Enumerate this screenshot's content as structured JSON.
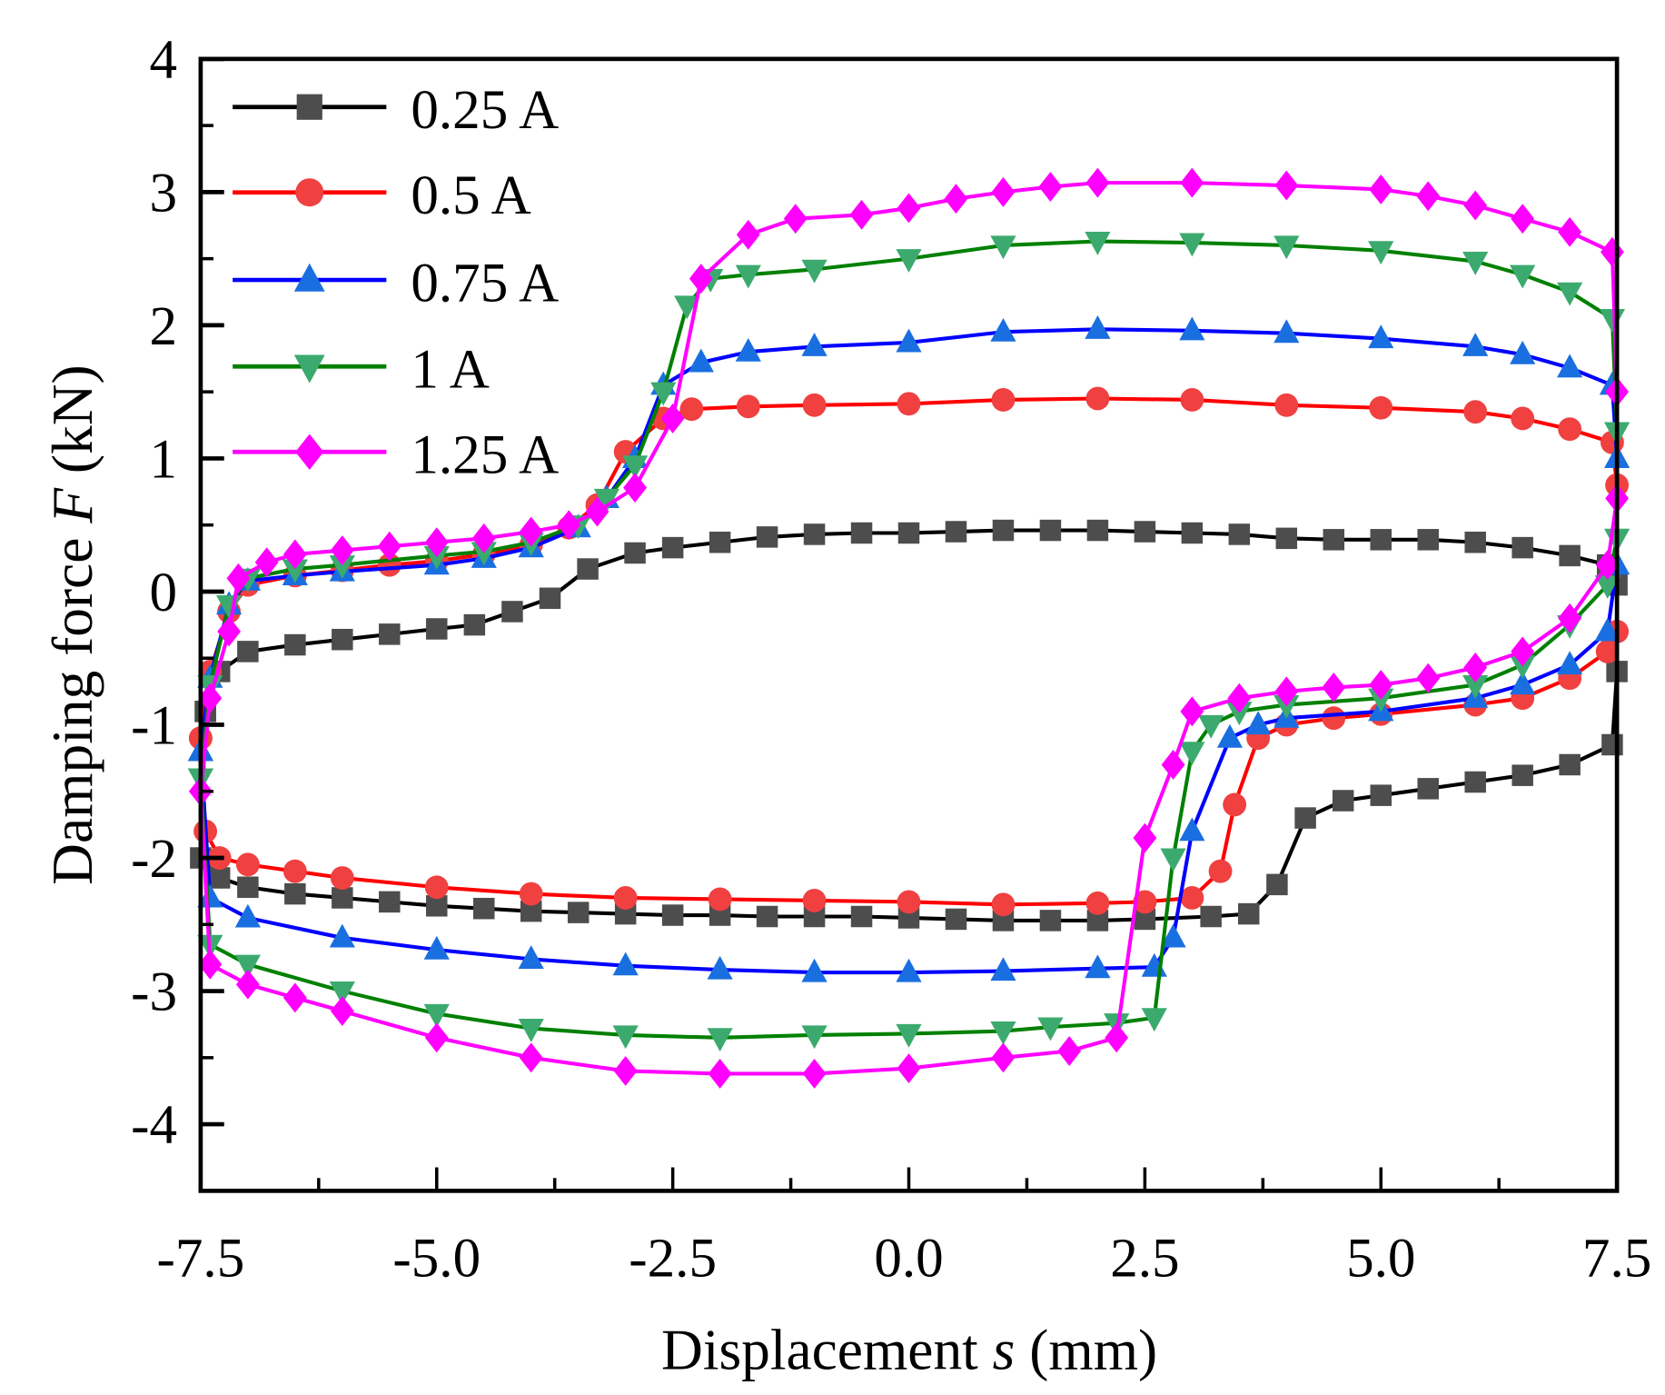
{
  "chart_data": {
    "type": "line",
    "title": "",
    "xlabel_parts": {
      "pre": "Displacement ",
      "var": "s",
      "post": " (mm)"
    },
    "ylabel_parts": {
      "pre": "Damping force ",
      "var": "F",
      "post": " (kN)"
    },
    "xlim": [
      -7.5,
      7.5
    ],
    "ylim": [
      -4.5,
      4
    ],
    "xticks": [
      -7.5,
      -5.0,
      -2.5,
      0.0,
      2.5,
      5.0,
      7.5
    ],
    "xtick_labels": [
      "-7.5",
      "-5.0",
      "-2.5",
      "0.0",
      "2.5",
      "5.0",
      "7.5"
    ],
    "yticks": [
      4,
      3,
      2,
      1,
      0,
      -1,
      -2,
      -3,
      -4
    ],
    "ytick_labels": [
      "4",
      "3",
      "2",
      "1",
      "0",
      "-1",
      "-2",
      "-3",
      "-4"
    ],
    "grid": false,
    "legend_position": "top-left",
    "series": [
      {
        "name": "0.25 A",
        "line": "#000000",
        "marker_color": "#4d4d4d",
        "marker": "square",
        "upper": [
          [
            -7.45,
            -0.9
          ],
          [
            -7.3,
            -0.6
          ],
          [
            -7.0,
            -0.45
          ],
          [
            -6.5,
            -0.4
          ],
          [
            -6,
            -0.36
          ],
          [
            -5.5,
            -0.32
          ],
          [
            -5,
            -0.28
          ],
          [
            -4.6,
            -0.25
          ],
          [
            -4.2,
            -0.15
          ],
          [
            -3.8,
            -0.05
          ],
          [
            -3.4,
            0.17
          ],
          [
            -2.9,
            0.29
          ],
          [
            -2.5,
            0.33
          ],
          [
            -2,
            0.37
          ],
          [
            -1.5,
            0.41
          ],
          [
            -1,
            0.43
          ],
          [
            -0.5,
            0.44
          ],
          [
            0,
            0.44
          ],
          [
            0.5,
            0.45
          ],
          [
            1,
            0.46
          ],
          [
            1.5,
            0.46
          ],
          [
            2,
            0.46
          ],
          [
            2.5,
            0.45
          ],
          [
            3,
            0.44
          ],
          [
            3.5,
            0.43
          ],
          [
            4,
            0.4
          ],
          [
            4.5,
            0.39
          ],
          [
            5,
            0.39
          ],
          [
            5.5,
            0.39
          ],
          [
            6,
            0.37
          ],
          [
            6.5,
            0.33
          ],
          [
            7,
            0.27
          ],
          [
            7.4,
            0.2
          ],
          [
            7.5,
            0.05
          ]
        ],
        "lower": [
          [
            7.5,
            -0.6
          ],
          [
            7.45,
            -1.15
          ],
          [
            7,
            -1.3
          ],
          [
            6.5,
            -1.38
          ],
          [
            6,
            -1.43
          ],
          [
            5.5,
            -1.48
          ],
          [
            5,
            -1.53
          ],
          [
            4.6,
            -1.57
          ],
          [
            4.2,
            -1.7
          ],
          [
            3.9,
            -2.2
          ],
          [
            3.6,
            -2.42
          ],
          [
            3.2,
            -2.44
          ],
          [
            2.5,
            -2.46
          ],
          [
            2,
            -2.47
          ],
          [
            1.5,
            -2.47
          ],
          [
            1,
            -2.47
          ],
          [
            0.5,
            -2.46
          ],
          [
            0,
            -2.45
          ],
          [
            -0.5,
            -2.44
          ],
          [
            -1,
            -2.44
          ],
          [
            -1.5,
            -2.44
          ],
          [
            -2,
            -2.43
          ],
          [
            -2.5,
            -2.43
          ],
          [
            -3,
            -2.42
          ],
          [
            -3.5,
            -2.41
          ],
          [
            -4,
            -2.4
          ],
          [
            -4.5,
            -2.38
          ],
          [
            -5,
            -2.36
          ],
          [
            -5.5,
            -2.33
          ],
          [
            -6,
            -2.3
          ],
          [
            -6.5,
            -2.27
          ],
          [
            -7,
            -2.22
          ],
          [
            -7.3,
            -2.15
          ],
          [
            -7.5,
            -2.0
          ],
          [
            -7.45,
            -0.9
          ]
        ]
      },
      {
        "name": "0.5 A",
        "line": "#ff0000",
        "marker_color": "#f04040",
        "marker": "circle",
        "upper": [
          [
            -7.5,
            -1.1
          ],
          [
            -7.4,
            -0.6
          ],
          [
            -7.2,
            -0.15
          ],
          [
            -7,
            0.05
          ],
          [
            -6.5,
            0.12
          ],
          [
            -6,
            0.16
          ],
          [
            -5.5,
            0.2
          ],
          [
            -5,
            0.23
          ],
          [
            -4.5,
            0.28
          ],
          [
            -4,
            0.35
          ],
          [
            -3.6,
            0.48
          ],
          [
            -3.3,
            0.65
          ],
          [
            -3.0,
            1.05
          ],
          [
            -2.6,
            1.3
          ],
          [
            -2.3,
            1.37
          ],
          [
            -1.7,
            1.39
          ],
          [
            -1,
            1.4
          ],
          [
            0,
            1.41
          ],
          [
            1,
            1.44
          ],
          [
            2,
            1.45
          ],
          [
            3,
            1.44
          ],
          [
            4,
            1.4
          ],
          [
            5,
            1.38
          ],
          [
            6,
            1.35
          ],
          [
            6.5,
            1.3
          ],
          [
            7,
            1.22
          ],
          [
            7.45,
            1.12
          ],
          [
            7.5,
            0.8
          ]
        ],
        "lower": [
          [
            7.5,
            -0.3
          ],
          [
            7.4,
            -0.45
          ],
          [
            7,
            -0.65
          ],
          [
            6.5,
            -0.8
          ],
          [
            6,
            -0.85
          ],
          [
            5,
            -0.92
          ],
          [
            4.5,
            -0.95
          ],
          [
            4,
            -1.0
          ],
          [
            3.7,
            -1.1
          ],
          [
            3.45,
            -1.6
          ],
          [
            3.3,
            -2.1
          ],
          [
            3.0,
            -2.3
          ],
          [
            2.5,
            -2.33
          ],
          [
            2,
            -2.34
          ],
          [
            1,
            -2.35
          ],
          [
            0,
            -2.33
          ],
          [
            -1,
            -2.32
          ],
          [
            -2,
            -2.31
          ],
          [
            -3,
            -2.3
          ],
          [
            -4,
            -2.27
          ],
          [
            -5,
            -2.22
          ],
          [
            -6,
            -2.15
          ],
          [
            -6.5,
            -2.1
          ],
          [
            -7,
            -2.05
          ],
          [
            -7.3,
            -2.0
          ],
          [
            -7.45,
            -1.8
          ],
          [
            -7.5,
            -1.1
          ]
        ]
      },
      {
        "name": "0.75 A",
        "line": "#0000ff",
        "marker_color": "#1a6fe0",
        "marker": "triangle-up",
        "upper": [
          [
            -7.5,
            -1.2
          ],
          [
            -7.4,
            -0.65
          ],
          [
            -7.2,
            -0.1
          ],
          [
            -7,
            0.08
          ],
          [
            -6.5,
            0.12
          ],
          [
            -6,
            0.15
          ],
          [
            -5,
            0.2
          ],
          [
            -4.5,
            0.25
          ],
          [
            -4,
            0.33
          ],
          [
            -3.5,
            0.48
          ],
          [
            -3.2,
            0.7
          ],
          [
            -2.9,
            1.0
          ],
          [
            -2.6,
            1.55
          ],
          [
            -2.2,
            1.72
          ],
          [
            -1.7,
            1.8
          ],
          [
            -1,
            1.84
          ],
          [
            0,
            1.87
          ],
          [
            1,
            1.95
          ],
          [
            2,
            1.97
          ],
          [
            3,
            1.96
          ],
          [
            4,
            1.94
          ],
          [
            5,
            1.9
          ],
          [
            6,
            1.84
          ],
          [
            6.5,
            1.78
          ],
          [
            7,
            1.68
          ],
          [
            7.45,
            1.55
          ],
          [
            7.5,
            1.0
          ]
        ],
        "lower": [
          [
            7.5,
            0.2
          ],
          [
            7.4,
            -0.3
          ],
          [
            7,
            -0.55
          ],
          [
            6.5,
            -0.7
          ],
          [
            6,
            -0.8
          ],
          [
            5,
            -0.9
          ],
          [
            4,
            -0.95
          ],
          [
            3.7,
            -1.0
          ],
          [
            3.4,
            -1.1
          ],
          [
            3.0,
            -1.8
          ],
          [
            2.8,
            -2.6
          ],
          [
            2.6,
            -2.82
          ],
          [
            2,
            -2.83
          ],
          [
            1,
            -2.85
          ],
          [
            0,
            -2.86
          ],
          [
            -1,
            -2.86
          ],
          [
            -2,
            -2.84
          ],
          [
            -3,
            -2.81
          ],
          [
            -4,
            -2.76
          ],
          [
            -5,
            -2.69
          ],
          [
            -6,
            -2.6
          ],
          [
            -7,
            -2.45
          ],
          [
            -7.4,
            -2.3
          ],
          [
            -7.5,
            -1.2
          ]
        ]
      },
      {
        "name": "1 A",
        "line": "#008000",
        "marker_color": "#3caa6e",
        "marker": "triangle-down",
        "upper": [
          [
            -7.5,
            -1.4
          ],
          [
            -7.4,
            -0.7
          ],
          [
            -7.2,
            -0.1
          ],
          [
            -7,
            0.1
          ],
          [
            -6.5,
            0.17
          ],
          [
            -6,
            0.2
          ],
          [
            -5,
            0.27
          ],
          [
            -4.5,
            0.3
          ],
          [
            -4,
            0.37
          ],
          [
            -3.5,
            0.5
          ],
          [
            -3.2,
            0.7
          ],
          [
            -2.9,
            0.95
          ],
          [
            -2.6,
            1.5
          ],
          [
            -2.35,
            2.15
          ],
          [
            -2.1,
            2.35
          ],
          [
            -1.7,
            2.38
          ],
          [
            -1,
            2.42
          ],
          [
            0,
            2.5
          ],
          [
            1,
            2.6
          ],
          [
            2,
            2.63
          ],
          [
            3,
            2.62
          ],
          [
            4,
            2.6
          ],
          [
            5,
            2.56
          ],
          [
            6,
            2.48
          ],
          [
            6.5,
            2.38
          ],
          [
            7,
            2.25
          ],
          [
            7.45,
            2.05
          ],
          [
            7.5,
            1.2
          ]
        ],
        "lower": [
          [
            7.5,
            0.4
          ],
          [
            7.4,
            0.05
          ],
          [
            7,
            -0.25
          ],
          [
            6.5,
            -0.55
          ],
          [
            6,
            -0.7
          ],
          [
            5,
            -0.8
          ],
          [
            4,
            -0.85
          ],
          [
            3.5,
            -0.9
          ],
          [
            3.2,
            -1.0
          ],
          [
            3.0,
            -1.2
          ],
          [
            2.8,
            -2.0
          ],
          [
            2.6,
            -3.2
          ],
          [
            2.2,
            -3.24
          ],
          [
            1.5,
            -3.27
          ],
          [
            1,
            -3.3
          ],
          [
            0,
            -3.32
          ],
          [
            -1,
            -3.33
          ],
          [
            -2,
            -3.35
          ],
          [
            -3,
            -3.33
          ],
          [
            -4,
            -3.28
          ],
          [
            -5,
            -3.17
          ],
          [
            -6,
            -3.0
          ],
          [
            -7,
            -2.8
          ],
          [
            -7.4,
            -2.65
          ],
          [
            -7.5,
            -1.4
          ]
        ]
      },
      {
        "name": "1.25 A",
        "line": "#ff00ff",
        "marker_color": "#ff00ff",
        "marker": "diamond",
        "upper": [
          [
            -7.5,
            -1.5
          ],
          [
            -7.4,
            -0.8
          ],
          [
            -7.2,
            -0.3
          ],
          [
            -7.1,
            0.1
          ],
          [
            -6.8,
            0.22
          ],
          [
            -6.5,
            0.28
          ],
          [
            -6,
            0.31
          ],
          [
            -5.5,
            0.34
          ],
          [
            -5,
            0.37
          ],
          [
            -4.5,
            0.4
          ],
          [
            -4,
            0.45
          ],
          [
            -3.6,
            0.5
          ],
          [
            -3.3,
            0.6
          ],
          [
            -2.9,
            0.78
          ],
          [
            -2.5,
            1.3
          ],
          [
            -2.2,
            2.35
          ],
          [
            -1.7,
            2.68
          ],
          [
            -1.2,
            2.8
          ],
          [
            -0.5,
            2.83
          ],
          [
            0,
            2.88
          ],
          [
            0.5,
            2.95
          ],
          [
            1,
            3.0
          ],
          [
            1.5,
            3.04
          ],
          [
            2,
            3.07
          ],
          [
            3,
            3.07
          ],
          [
            4,
            3.05
          ],
          [
            5,
            3.02
          ],
          [
            5.5,
            2.97
          ],
          [
            6,
            2.9
          ],
          [
            6.5,
            2.8
          ],
          [
            7,
            2.7
          ],
          [
            7.45,
            2.55
          ],
          [
            7.5,
            1.5
          ]
        ],
        "lower": [
          [
            7.5,
            0.7
          ],
          [
            7.4,
            0.2
          ],
          [
            7,
            -0.2
          ],
          [
            6.5,
            -0.45
          ],
          [
            6,
            -0.57
          ],
          [
            5.5,
            -0.65
          ],
          [
            5,
            -0.7
          ],
          [
            4.5,
            -0.72
          ],
          [
            4,
            -0.75
          ],
          [
            3.5,
            -0.8
          ],
          [
            3,
            -0.9
          ],
          [
            2.8,
            -1.3
          ],
          [
            2.5,
            -1.85
          ],
          [
            2.2,
            -3.35
          ],
          [
            1.7,
            -3.45
          ],
          [
            1,
            -3.5
          ],
          [
            0,
            -3.58
          ],
          [
            -1,
            -3.62
          ],
          [
            -2,
            -3.62
          ],
          [
            -3,
            -3.6
          ],
          [
            -4,
            -3.5
          ],
          [
            -5,
            -3.35
          ],
          [
            -6,
            -3.15
          ],
          [
            -6.5,
            -3.05
          ],
          [
            -7,
            -2.95
          ],
          [
            -7.4,
            -2.8
          ],
          [
            -7.5,
            -1.5
          ]
        ]
      }
    ]
  }
}
